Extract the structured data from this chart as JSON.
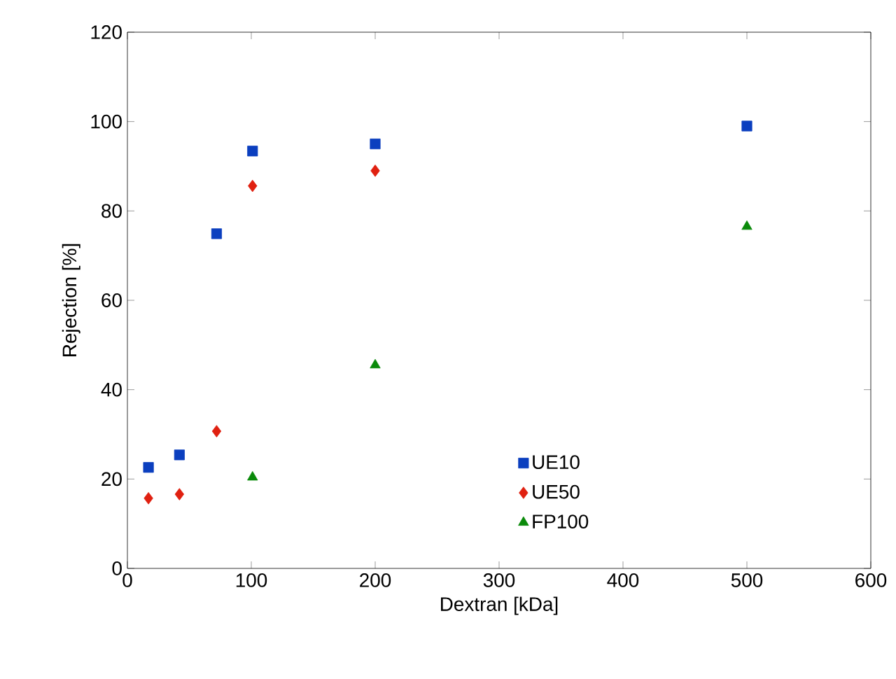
{
  "chart_data": {
    "type": "scatter",
    "xlabel": "Dextran [kDa]",
    "ylabel": "Rejection [%]",
    "xlim": [
      0,
      600
    ],
    "xticks": [
      0,
      100,
      200,
      300,
      400,
      500,
      600
    ],
    "ylim": [
      0,
      120
    ],
    "yticks": [
      0,
      20,
      40,
      60,
      80,
      100,
      120
    ],
    "grid": false,
    "legend": "bottom right",
    "series": [
      {
        "name": "UE10",
        "color": "#0b3fbf",
        "marker": "square",
        "x": [
          17,
          42,
          72,
          101,
          200,
          500
        ],
        "values": [
          22.6,
          25.4,
          74.9,
          93.4,
          95,
          99
        ]
      },
      {
        "name": "UE50",
        "color": "#e02010",
        "marker": "diamond",
        "x": [
          17,
          42,
          72,
          101,
          200
        ],
        "values": [
          15.7,
          16.6,
          30.7,
          85.6,
          89
        ]
      },
      {
        "name": "FP100",
        "color": "#0a8a0a",
        "marker": "triangle",
        "x": [
          101,
          200,
          500
        ],
        "values": [
          20.4,
          45.5,
          76.5
        ]
      }
    ]
  }
}
